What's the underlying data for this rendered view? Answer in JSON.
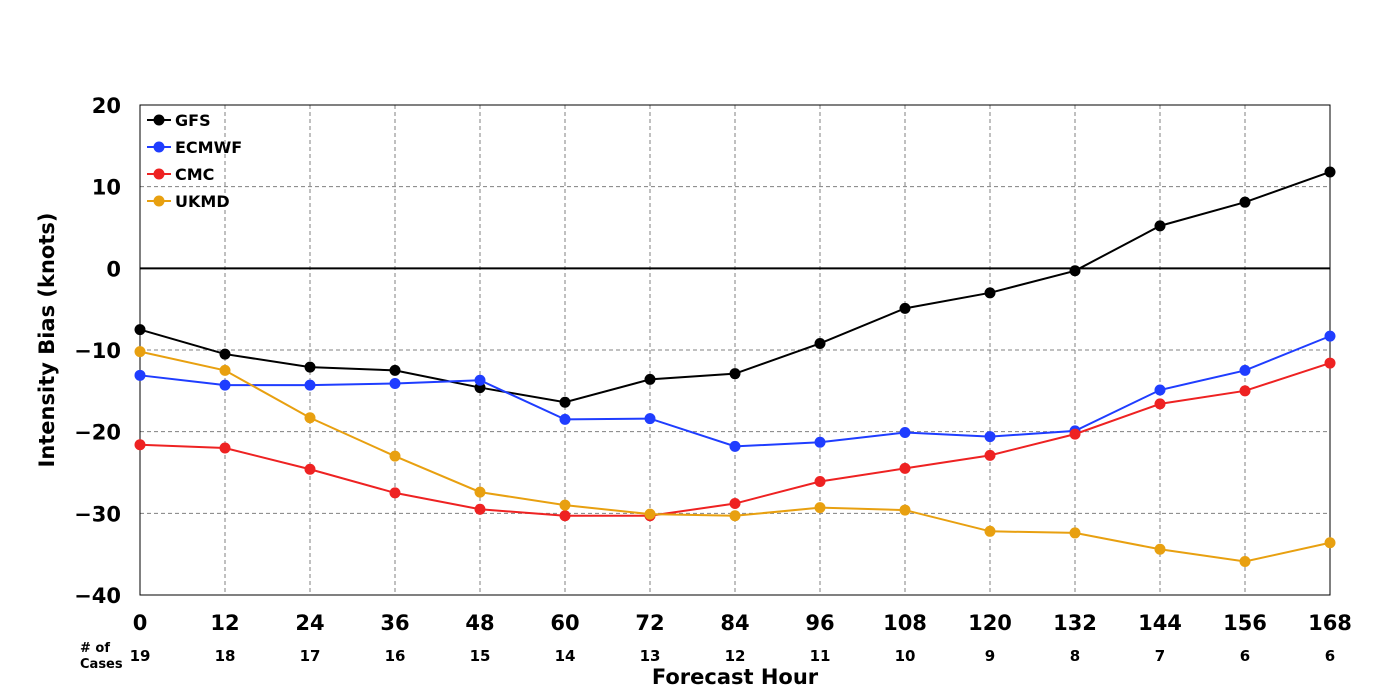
{
  "chart_data": {
    "type": "line",
    "xlabel": "Forecast Hour",
    "ylabel": "Intensity Bias (knots)",
    "x": [
      0,
      12,
      24,
      36,
      48,
      60,
      72,
      84,
      96,
      108,
      120,
      132,
      144,
      156,
      168
    ],
    "x_tick_labels": [
      "0",
      "12",
      "24",
      "36",
      "48",
      "60",
      "72",
      "84",
      "96",
      "108",
      "120",
      "132",
      "144",
      "156",
      "168"
    ],
    "ylim": [
      -40,
      20
    ],
    "y_ticks": [
      20,
      10,
      0,
      -10,
      -20,
      -30,
      -40
    ],
    "y_tick_labels": [
      "20",
      "10",
      "0",
      "−10",
      "−20",
      "−30",
      "−40"
    ],
    "grid": true,
    "legend_position": "top-left",
    "cases_label": "# of\nCases",
    "cases": [
      "19",
      "18",
      "17",
      "16",
      "15",
      "14",
      "13",
      "12",
      "11",
      "10",
      "9",
      "8",
      "7",
      "6",
      "6"
    ],
    "series": [
      {
        "name": "GFS",
        "color": "#000000",
        "values": [
          -7.5,
          -10.5,
          -12.1,
          -12.5,
          -14.6,
          -16.4,
          -13.6,
          -12.9,
          -9.2,
          -4.9,
          -3.0,
          -0.3,
          5.2,
          8.1,
          11.8
        ]
      },
      {
        "name": "ECMWF",
        "color": "#1f3dff",
        "values": [
          -13.1,
          -14.3,
          -14.3,
          -14.1,
          -13.7,
          -18.5,
          -18.4,
          -21.8,
          -21.3,
          -20.1,
          -20.6,
          -19.9,
          -14.9,
          -12.5,
          -8.3
        ]
      },
      {
        "name": "CMC",
        "color": "#ee2222",
        "values": [
          -21.6,
          -22.0,
          -24.6,
          -27.5,
          -29.5,
          -30.3,
          -30.3,
          -28.8,
          -26.1,
          -24.5,
          -22.9,
          -20.3,
          -16.6,
          -15.0,
          -11.6
        ]
      },
      {
        "name": "UKMD",
        "color": "#e8a010",
        "values": [
          -10.2,
          -12.5,
          -18.3,
          -23.0,
          -27.4,
          -29.0,
          -30.1,
          -30.3,
          -29.3,
          -29.6,
          -32.2,
          -32.4,
          -34.4,
          -35.9,
          -33.6
        ]
      }
    ]
  }
}
